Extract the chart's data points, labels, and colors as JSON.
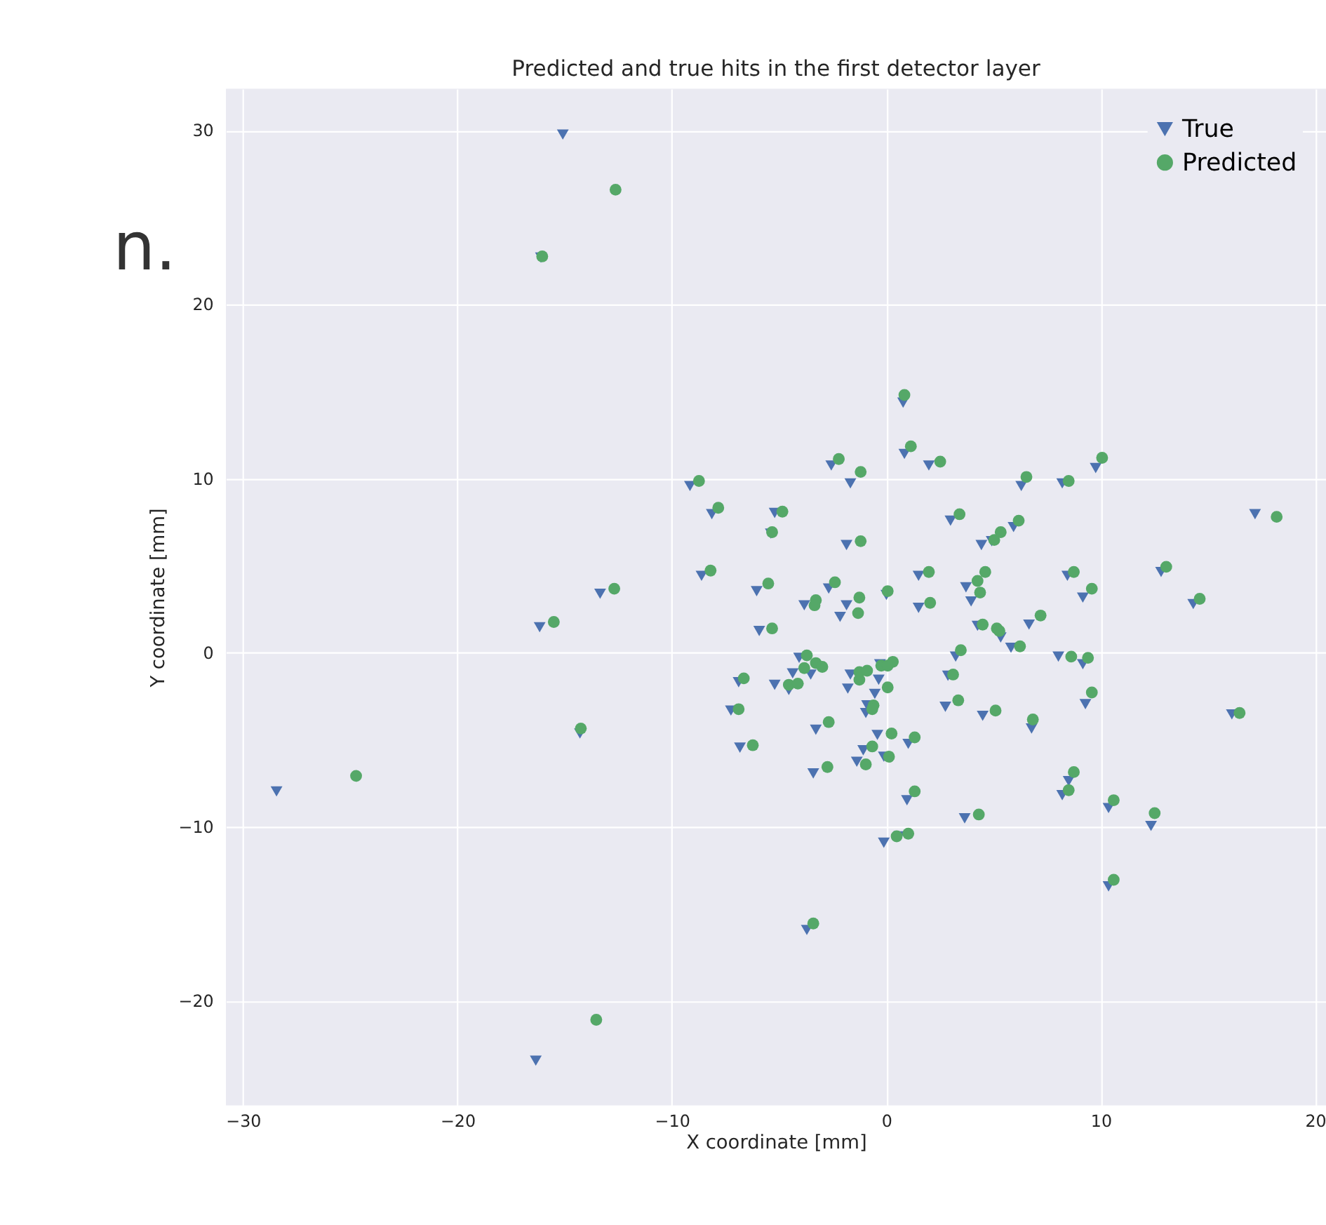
{
  "chart_data": {
    "type": "scatter",
    "title": "Predicted and true hits in the first detector layer",
    "xlabel": "X coordinate [mm]",
    "ylabel": "Y coordinate [mm]",
    "annotations": [
      "n."
    ],
    "xlim": [
      -30.8,
      20.5
    ],
    "ylim": [
      -26.0,
      32.4
    ],
    "xticks": [
      -30,
      -20,
      -10,
      0,
      10,
      20
    ],
    "yticks": [
      -20,
      -10,
      0,
      10,
      20,
      30
    ],
    "grid": true,
    "legend": "top right",
    "series": [
      {
        "name": "True",
        "color": "#4c72b0",
        "marker": "triangle",
        "x": [
          -15.09,
          -16.11,
          0.78,
          0.84,
          1.98,
          -2.57,
          -1.68,
          -9.16,
          -8.14,
          -5.21,
          -5.39,
          -1.86,
          2.99,
          4.43,
          -8.62,
          -6.05,
          -2.69,
          -3.83,
          -1.86,
          -2.16,
          0.0,
          1.5,
          1.5,
          3.71,
          3.95,
          -5.93,
          3.23,
          4.25,
          6.29,
          8.2,
          9.76,
          5.93,
          4.91,
          17.19,
          8.44,
          9.16,
          6.65,
          12.81,
          14.31,
          5.33,
          5.81,
          8.02,
          -4.07,
          -3.53,
          -4.37,
          -6.89,
          -5.21,
          -4.55,
          -1.68,
          -1.8,
          -0.36,
          -0.54,
          -0.9,
          -0.96,
          -7.25,
          -3.29,
          -0.42,
          1.02,
          -1.08,
          -0.12,
          -1.38,
          -6.83,
          -3.41,
          0.96,
          3.65,
          -0.12,
          0.6,
          -3.71,
          2.87,
          2.75,
          -0.3,
          4.49,
          9.16,
          9.28,
          6.77,
          16.11,
          8.5,
          8.2,
          10.36,
          12.34,
          10.36,
          -28.44,
          -14.29,
          -16.35,
          -13.35,
          -16.17
        ],
        "values": [
          29.77,
          22.7,
          14.37,
          11.42,
          10.76,
          10.76,
          9.73,
          9.58,
          7.96,
          8.03,
          6.85,
          6.19,
          7.59,
          6.19,
          4.42,
          3.54,
          3.69,
          2.73,
          2.73,
          2.06,
          3.32,
          4.42,
          2.58,
          3.76,
          2.95,
          1.25,
          -0.22,
          1.55,
          9.58,
          9.73,
          10.61,
          7.22,
          6.41,
          7.96,
          4.42,
          3.17,
          1.62,
          4.64,
          2.8,
          0.88,
          0.29,
          -0.22,
          -0.29,
          -1.25,
          -1.18,
          -1.69,
          -1.84,
          -2.14,
          -1.25,
          -2.06,
          -1.55,
          -2.36,
          -3.02,
          -3.46,
          -3.32,
          -4.42,
          -4.72,
          -5.23,
          -5.6,
          -5.97,
          -6.26,
          -5.45,
          -6.93,
          -8.47,
          -9.51,
          -10.91,
          -10.54,
          -15.92,
          -1.32,
          -3.1,
          -0.66,
          -3.62,
          -0.66,
          -2.95,
          -4.35,
          -3.54,
          -7.37,
          -8.18,
          -8.92,
          -9.95,
          -13.42,
          -7.96,
          -4.64,
          -23.43,
          3.39,
          1.47
        ]
      },
      {
        "name": "Predicted",
        "color": "#55a868",
        "marker": "circle",
        "x": [
          -12.63,
          -16.05,
          0.84,
          1.14,
          -2.22,
          -1.2,
          2.51,
          6.53,
          8.5,
          10.06,
          -8.74,
          -7.84,
          -4.85,
          -5.33,
          -1.2,
          3.41,
          5.33,
          5.03,
          6.17,
          -8.2,
          -5.51,
          -2.4,
          -3.29,
          -3.35,
          -1.26,
          -1.32,
          0.06,
          1.98,
          2.04,
          4.61,
          4.25,
          4.37,
          7.19,
          8.74,
          9.58,
          13.05,
          14.61,
          18.2,
          -12.69,
          -15.51,
          -5.33,
          3.47,
          4.49,
          5.15,
          5.27,
          6.23,
          8.62,
          9.4,
          9.58,
          3.11,
          3.35,
          5.09,
          6.83,
          16.47,
          -3.71,
          -3.29,
          -2.99,
          -3.83,
          -6.65,
          -4.55,
          -4.13,
          -1.26,
          -0.9,
          -1.26,
          -0.24,
          0.3,
          0.06,
          0.06,
          -0.6,
          -0.66,
          -6.89,
          -2.69,
          0.24,
          1.32,
          -0.66,
          0.12,
          -0.96,
          -6.23,
          -2.75,
          1.32,
          4.31,
          0.48,
          1.02,
          -3.41,
          8.74,
          8.5,
          10.6,
          12.51,
          10.6,
          -24.73,
          -14.25,
          -13.53
        ],
        "values": [
          26.6,
          22.77,
          14.81,
          11.86,
          11.13,
          10.39,
          10.98,
          10.1,
          9.87,
          11.2,
          9.87,
          8.33,
          8.11,
          6.93,
          6.41,
          7.96,
          6.93,
          6.48,
          7.59,
          4.72,
          3.98,
          4.05,
          3.02,
          2.73,
          3.17,
          2.28,
          3.54,
          4.64,
          2.87,
          4.64,
          4.13,
          3.46,
          2.14,
          4.64,
          3.68,
          4.94,
          3.1,
          7.81,
          3.68,
          1.77,
          1.4,
          0.15,
          1.62,
          1.4,
          1.25,
          0.37,
          -0.22,
          -0.29,
          -2.28,
          -1.25,
          -2.73,
          -3.32,
          -3.83,
          -3.46,
          -0.15,
          -0.59,
          -0.81,
          -0.88,
          -1.47,
          -1.84,
          -1.77,
          -1.11,
          -1.03,
          -1.55,
          -0.74,
          -0.52,
          -0.74,
          -1.99,
          -3.02,
          -3.24,
          -3.24,
          -3.98,
          -4.64,
          -4.86,
          -5.38,
          -5.97,
          -6.41,
          -5.31,
          -6.56,
          -7.96,
          -9.29,
          -10.54,
          -10.39,
          -15.55,
          -6.85,
          -7.89,
          -8.47,
          -9.21,
          -13.04,
          -7.07,
          -4.35,
          -21.08
        ]
      }
    ]
  }
}
